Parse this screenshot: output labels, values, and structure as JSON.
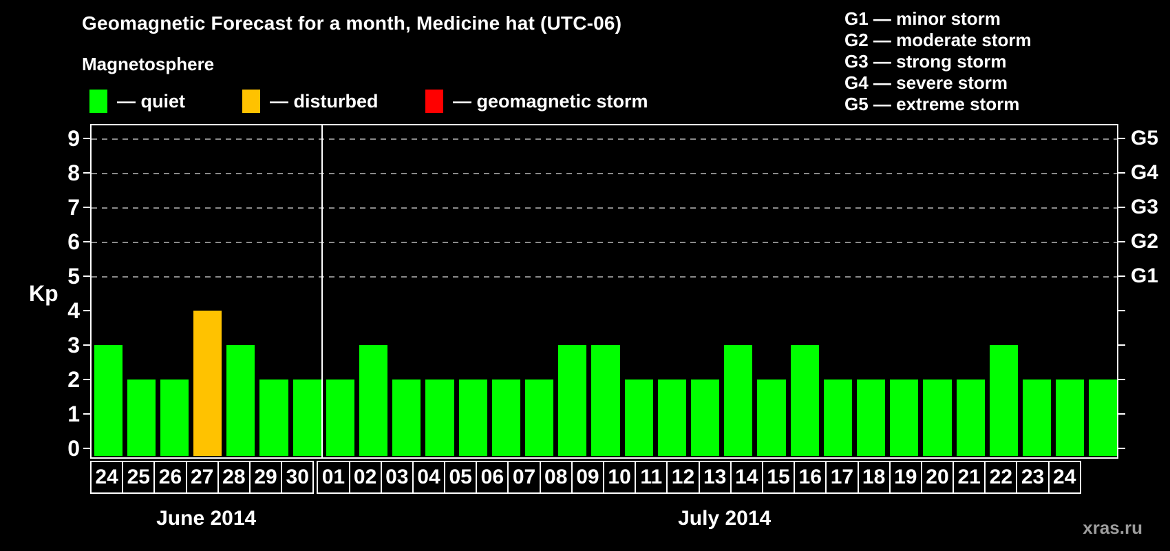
{
  "header": {
    "title": "Geomagnetic Forecast for a month, Medicine hat (UTC-06)"
  },
  "magnetosphere_legend": {
    "title": "Magnetosphere",
    "items": [
      {
        "key": "quiet",
        "label": "— quiet",
        "color": "#00ff00"
      },
      {
        "key": "disturbed",
        "label": "— disturbed",
        "color": "#ffc200"
      },
      {
        "key": "storm",
        "label": "— geomagnetic storm",
        "color": "#ff0000"
      }
    ]
  },
  "g_scale_legend": {
    "items": [
      "G1 — minor storm",
      "G2 — moderate storm",
      "G3 — strong storm",
      "G4 — severe storm",
      "G5 — extreme storm"
    ]
  },
  "watermark": "xras.ru",
  "chart_data": {
    "type": "bar",
    "title": "Geomagnetic Forecast for a month, Medicine hat (UTC-06)",
    "ylabel": "Kp",
    "ylim": [
      0,
      9.4
    ],
    "yticks": [
      0,
      1,
      2,
      3,
      4,
      5,
      6,
      7,
      8,
      9
    ],
    "gridlines_at": [
      5,
      6,
      7,
      8,
      9
    ],
    "grid": "dashed",
    "right_axis": [
      {
        "label": "G1",
        "kp": 5
      },
      {
        "label": "G2",
        "kp": 6
      },
      {
        "label": "G3",
        "kp": 7
      },
      {
        "label": "G4",
        "kp": 8
      },
      {
        "label": "G5",
        "kp": 9
      }
    ],
    "colors": {
      "quiet": "#00ff00",
      "disturbed": "#ffc200",
      "storm": "#ff0000"
    },
    "months": [
      {
        "label": "June 2014",
        "days": [
          {
            "day": "24",
            "kp": 3,
            "status": "quiet"
          },
          {
            "day": "25",
            "kp": 2,
            "status": "quiet"
          },
          {
            "day": "26",
            "kp": 2,
            "status": "quiet"
          },
          {
            "day": "27",
            "kp": 4,
            "status": "disturbed"
          },
          {
            "day": "28",
            "kp": 3,
            "status": "quiet"
          },
          {
            "day": "29",
            "kp": 2,
            "status": "quiet"
          },
          {
            "day": "30",
            "kp": 2,
            "status": "quiet"
          }
        ]
      },
      {
        "label": "July 2014",
        "days": [
          {
            "day": "01",
            "kp": 2,
            "status": "quiet"
          },
          {
            "day": "02",
            "kp": 3,
            "status": "quiet"
          },
          {
            "day": "03",
            "kp": 2,
            "status": "quiet"
          },
          {
            "day": "04",
            "kp": 2,
            "status": "quiet"
          },
          {
            "day": "05",
            "kp": 2,
            "status": "quiet"
          },
          {
            "day": "06",
            "kp": 2,
            "status": "quiet"
          },
          {
            "day": "07",
            "kp": 2,
            "status": "quiet"
          },
          {
            "day": "08",
            "kp": 3,
            "status": "quiet"
          },
          {
            "day": "09",
            "kp": 3,
            "status": "quiet"
          },
          {
            "day": "10",
            "kp": 2,
            "status": "quiet"
          },
          {
            "day": "11",
            "kp": 2,
            "status": "quiet"
          },
          {
            "day": "12",
            "kp": 2,
            "status": "quiet"
          },
          {
            "day": "13",
            "kp": 3,
            "status": "quiet"
          },
          {
            "day": "14",
            "kp": 2,
            "status": "quiet"
          },
          {
            "day": "15",
            "kp": 3,
            "status": "quiet"
          },
          {
            "day": "16",
            "kp": 2,
            "status": "quiet"
          },
          {
            "day": "17",
            "kp": 2,
            "status": "quiet"
          },
          {
            "day": "18",
            "kp": 2,
            "status": "quiet"
          },
          {
            "day": "19",
            "kp": 2,
            "status": "quiet"
          },
          {
            "day": "20",
            "kp": 2,
            "status": "quiet"
          },
          {
            "day": "21",
            "kp": 3,
            "status": "quiet"
          },
          {
            "day": "22",
            "kp": 2,
            "status": "quiet"
          },
          {
            "day": "23",
            "kp": 2,
            "status": "quiet"
          },
          {
            "day": "24",
            "kp": 2,
            "status": "quiet"
          }
        ]
      }
    ]
  }
}
